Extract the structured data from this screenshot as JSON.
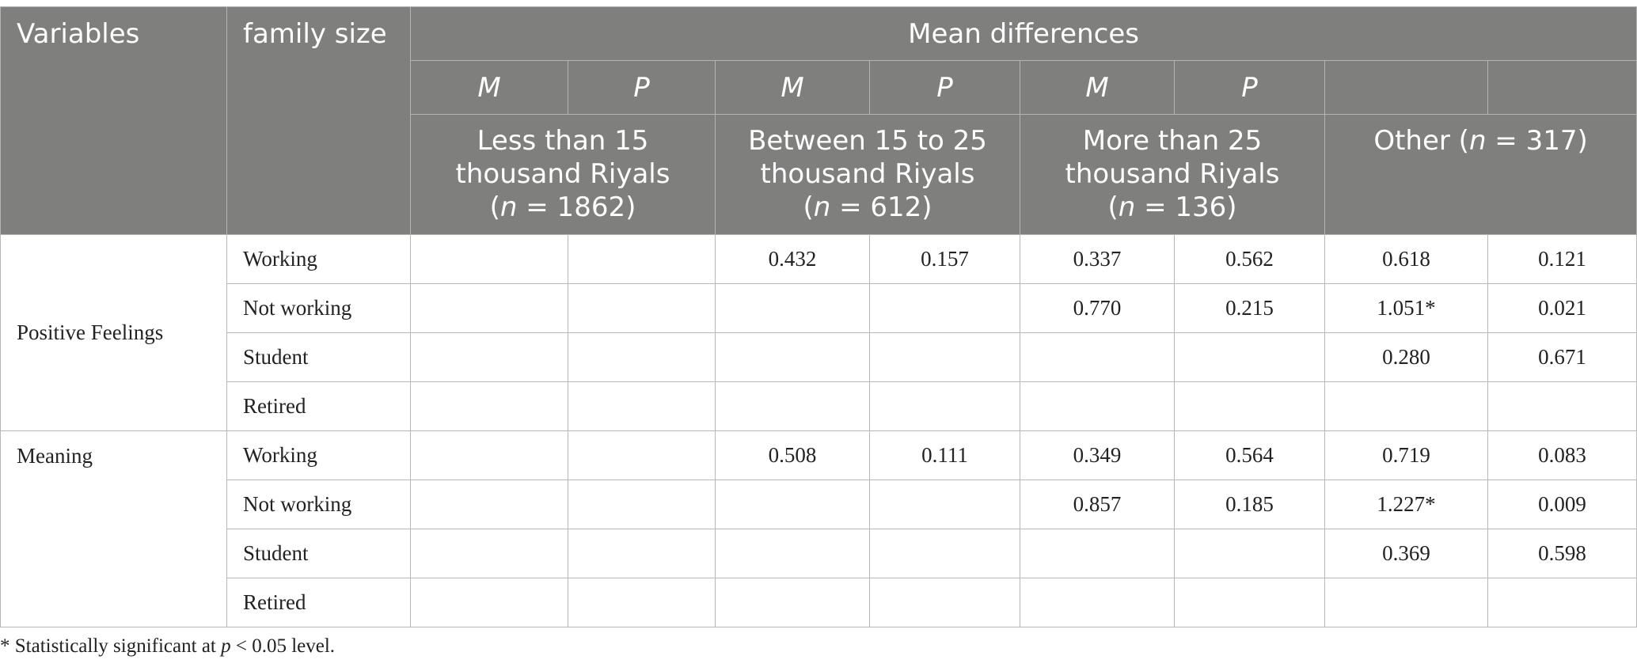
{
  "header": {
    "variables": "Variables",
    "family_size": "family size",
    "mean_differences": "Mean differences",
    "m": "M",
    "p": "P",
    "groups": [
      {
        "line1": "Less than 15",
        "line2": "thousand Riyals",
        "pre": "(",
        "n_symbol": "n",
        "n_text": " = 1862)"
      },
      {
        "line1": "Between 15 to 25",
        "line2": "thousand Riyals",
        "pre": "(",
        "n_symbol": "n",
        "n_text": " = 612)"
      },
      {
        "line1": "More than 25",
        "line2": "thousand Riyals",
        "pre": "(",
        "n_symbol": "n",
        "n_text": " = 136)"
      },
      {
        "line1": "Other (",
        "n_symbol": "n",
        "n_text": " = 317)"
      }
    ]
  },
  "variables": [
    {
      "name": "Positive Feelings",
      "rows": [
        {
          "label": "Working",
          "values": [
            "",
            "",
            "0.432",
            "0.157",
            "0.337",
            "0.562",
            "0.618",
            "0.121"
          ]
        },
        {
          "label": "Not working",
          "values": [
            "",
            "",
            "",
            "",
            "0.770",
            "0.215",
            "1.051*",
            "0.021"
          ]
        },
        {
          "label": "Student",
          "values": [
            "",
            "",
            "",
            "",
            "",
            "",
            "0.280",
            "0.671"
          ]
        },
        {
          "label": "Retired",
          "values": [
            "",
            "",
            "",
            "",
            "",
            "",
            "",
            ""
          ]
        }
      ]
    },
    {
      "name": "Meaning",
      "rows": [
        {
          "label": "Working",
          "values": [
            "",
            "",
            "0.508",
            "0.111",
            "0.349",
            "0.564",
            "0.719",
            "0.083"
          ]
        },
        {
          "label": "Not working",
          "values": [
            "",
            "",
            "",
            "",
            "0.857",
            "0.185",
            "1.227*",
            "0.009"
          ]
        },
        {
          "label": "Student",
          "values": [
            "",
            "",
            "",
            "",
            "",
            "",
            "0.369",
            "0.598"
          ]
        },
        {
          "label": "Retired",
          "values": [
            "",
            "",
            "",
            "",
            "",
            "",
            "",
            ""
          ]
        }
      ]
    }
  ],
  "footnote": {
    "prefix": "* Statistically significant at ",
    "p_symbol": "p",
    "suffix": " < 0.05 level."
  }
}
